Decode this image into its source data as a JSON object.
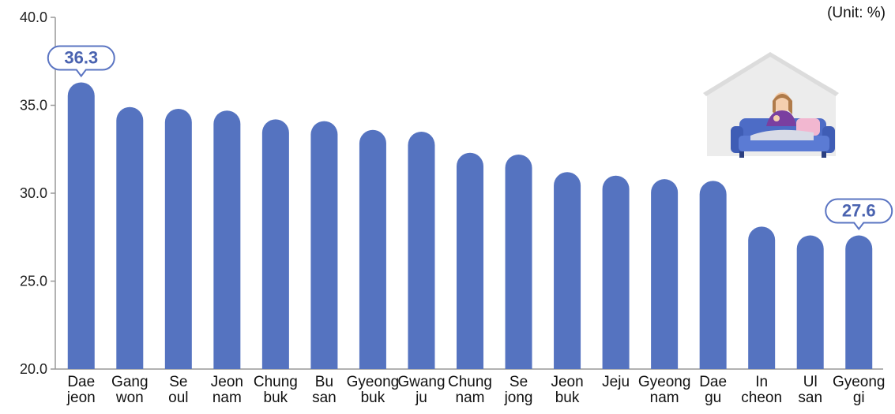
{
  "unit_label": "(Unit: %)",
  "colors": {
    "bar": "#5573c0",
    "axis": "#999999",
    "callout_stroke": "#5a74c2",
    "callout_text": "#4a63b0"
  },
  "chart_data": {
    "type": "bar",
    "title": "",
    "xlabel": "",
    "ylabel": "",
    "ylim": [
      20,
      40
    ],
    "yticks": [
      "20.0",
      "25.0",
      "30.0",
      "35.0",
      "40.0"
    ],
    "grid": false,
    "categories": [
      [
        "Dae",
        "jeon"
      ],
      [
        "Gang",
        "won"
      ],
      [
        "Se",
        "oul"
      ],
      [
        "Jeon",
        "nam"
      ],
      [
        "Chung",
        "buk"
      ],
      [
        "Bu",
        "san"
      ],
      [
        "Gyeong",
        "buk"
      ],
      [
        "Gwang",
        "ju"
      ],
      [
        "Chung",
        "nam"
      ],
      [
        "Se",
        "jong"
      ],
      [
        "Jeon",
        "buk"
      ],
      [
        "Jeju",
        ""
      ],
      [
        "Gyeong",
        "nam"
      ],
      [
        "Dae",
        "gu"
      ],
      [
        "In",
        "cheon"
      ],
      [
        "Ul",
        "san"
      ],
      [
        "Gyeong",
        "gi"
      ]
    ],
    "values": [
      36.3,
      34.9,
      34.8,
      34.7,
      34.2,
      34.1,
      33.6,
      33.5,
      32.3,
      32.2,
      31.2,
      31.0,
      30.8,
      30.7,
      28.1,
      27.6,
      27.6
    ],
    "annotations": [
      {
        "index": 0,
        "text": "36.3"
      },
      {
        "index": 16,
        "text": "27.6"
      }
    ],
    "illustration": "person-on-sofa-in-house-icon"
  }
}
